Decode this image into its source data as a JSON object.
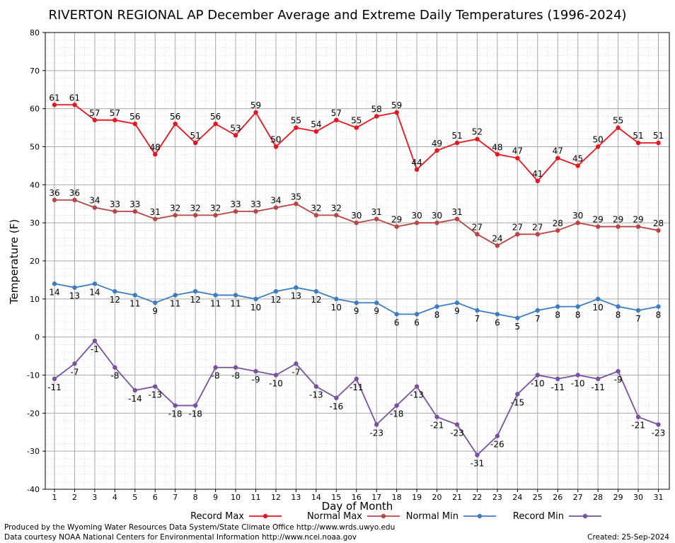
{
  "chart_data": {
    "type": "line",
    "title": "RIVERTON REGIONAL AP December Average and Extreme Daily Temperatures (1996-2024)",
    "xlabel": "Day of Month",
    "ylabel": "Temperature (F)",
    "xlim": [
      1,
      31
    ],
    "ylim": [
      -40,
      80
    ],
    "yticks": [
      80,
      70,
      60,
      50,
      40,
      30,
      20,
      10,
      0,
      -10,
      -20,
      -30,
      -40
    ],
    "grid": true,
    "legend_position": "bottom",
    "x": [
      1,
      2,
      3,
      4,
      5,
      6,
      7,
      8,
      9,
      10,
      11,
      12,
      13,
      14,
      15,
      16,
      17,
      18,
      19,
      20,
      21,
      22,
      23,
      24,
      25,
      26,
      27,
      28,
      29,
      30,
      31
    ],
    "series": [
      {
        "name": "Record Max",
        "color": "#e8141e",
        "values": [
          61,
          61,
          57,
          57,
          56,
          48,
          56,
          51,
          56,
          53,
          59,
          50,
          55,
          54,
          57,
          55,
          58,
          59,
          44,
          49,
          51,
          52,
          48,
          47,
          41,
          47,
          45,
          50,
          55,
          51,
          51
        ]
      },
      {
        "name": "Normal Max",
        "color": "#b84444",
        "values": [
          36,
          36,
          34,
          33,
          33,
          31,
          32,
          32,
          32,
          33,
          33,
          34,
          35,
          32,
          32,
          30,
          31,
          29,
          30,
          30,
          31,
          27,
          24,
          27,
          27,
          28,
          30,
          29,
          29,
          29,
          28
        ]
      },
      {
        "name": "Normal Min",
        "color": "#3d7cc0",
        "values": [
          14,
          13,
          14,
          12,
          11,
          9,
          11,
          12,
          11,
          11,
          10,
          12,
          13,
          12,
          10,
          9,
          9,
          6,
          6,
          8,
          9,
          7,
          6,
          5,
          7,
          8,
          8,
          10,
          8,
          7,
          8
        ]
      },
      {
        "name": "Record Min",
        "color": "#7a50a0",
        "values": [
          -11,
          -7,
          -1,
          -8,
          -14,
          -13,
          -18,
          -18,
          -8,
          -8,
          -9,
          -10,
          -7,
          -13,
          -16,
          -11,
          -23,
          -18,
          -13,
          -21,
          -23,
          -31,
          -26,
          -15,
          -10,
          -11,
          -10,
          -11,
          -9,
          -21,
          -23
        ]
      }
    ]
  },
  "footer": {
    "produced_by": "Produced by the Wyoming Water Resources Data System/State Climate Office http://www.wrds.uwyo.edu",
    "courtesy": "Data courtesy NOAA National Centers for Environmental Information http://www.ncei.noaa.gov",
    "created": "Created: 25-Sep-2024"
  }
}
